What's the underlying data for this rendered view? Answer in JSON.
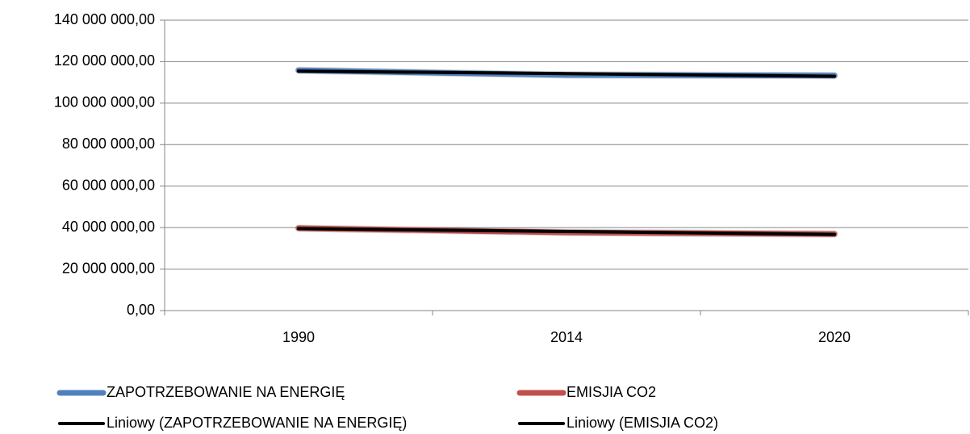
{
  "chart_data": {
    "type": "line",
    "categories": [
      "1990",
      "2014",
      "2020"
    ],
    "series": [
      {
        "name": "ZAPOTRZEBOWANIE NA ENERGIĘ",
        "color": "#4f81bd",
        "line_width": 7,
        "values": [
          115800000,
          113600000,
          113300000
        ]
      },
      {
        "name": "EMISJIA CO2",
        "color": "#c0504d",
        "line_width": 7,
        "values": [
          39700000,
          37700000,
          36900000
        ]
      },
      {
        "name": "Liniowy (ZAPOTRZEBOWANIE NA ENERGIĘ)",
        "color": "#000000",
        "line_width": 4,
        "values": [
          115480000,
          114230000,
          112980000
        ]
      },
      {
        "name": "Liniowy (EMISJIA CO2)",
        "color": "#000000",
        "line_width": 4,
        "values": [
          39500000,
          38100000,
          36700000
        ]
      }
    ],
    "ylim": [
      0,
      140000000
    ],
    "yticks": [
      {
        "value": 0,
        "label": "0,00"
      },
      {
        "value": 20000000,
        "label": "20 000 000,00"
      },
      {
        "value": 40000000,
        "label": "40 000 000,00"
      },
      {
        "value": 60000000,
        "label": "60 000 000,00"
      },
      {
        "value": 80000000,
        "label": "80 000 000,00"
      },
      {
        "value": 100000000,
        "label": "100 000 000,00"
      },
      {
        "value": 120000000,
        "label": "120 000 000,00"
      },
      {
        "value": 140000000,
        "label": "140 000 000,00"
      }
    ],
    "grid": true
  }
}
